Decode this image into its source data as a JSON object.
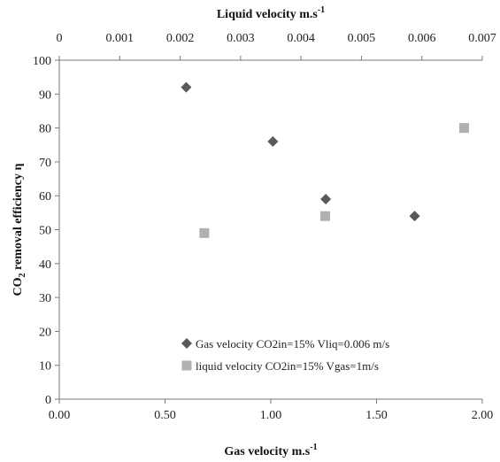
{
  "chart_data": {
    "type": "scatter",
    "xlabel": "Gas velocity m.s",
    "xlabel_sup": "-1",
    "x2label": "Liquid velocity m.s",
    "x2label_sup": "-1",
    "ylabel_parts": [
      "CO",
      "2",
      " removal efficiency η"
    ],
    "xlim": [
      0,
      2
    ],
    "x2lim": [
      0,
      0.007
    ],
    "ylim": [
      0,
      100
    ],
    "x_ticks": [
      "0.00",
      "0.50",
      "1.00",
      "1.50",
      "2.00"
    ],
    "x2_ticks": [
      "0",
      "0.001",
      "0.002",
      "0.003",
      "0.004",
      "0.005",
      "0.006",
      "0.007"
    ],
    "y_ticks": [
      "0",
      "10",
      "20",
      "30",
      "40",
      "50",
      "60",
      "70",
      "80",
      "90",
      "100"
    ],
    "legend_position": "bottom-left",
    "grid": false,
    "series": [
      {
        "name": "Gas velocity CO2in=15% Vliq=0.006 m/s",
        "axis": "bottom",
        "marker": "diamond",
        "color": "#595959",
        "x": [
          0.6,
          1.01,
          1.26,
          1.68
        ],
        "y": [
          92,
          76,
          59,
          54
        ]
      },
      {
        "name": "liquid velocity CO2in=15% Vgas=1m/s",
        "axis": "top",
        "marker": "square",
        "color": "#b0b0b0",
        "x": [
          0.0024,
          0.0044,
          0.0067
        ],
        "y": [
          49,
          54,
          80
        ]
      }
    ]
  }
}
